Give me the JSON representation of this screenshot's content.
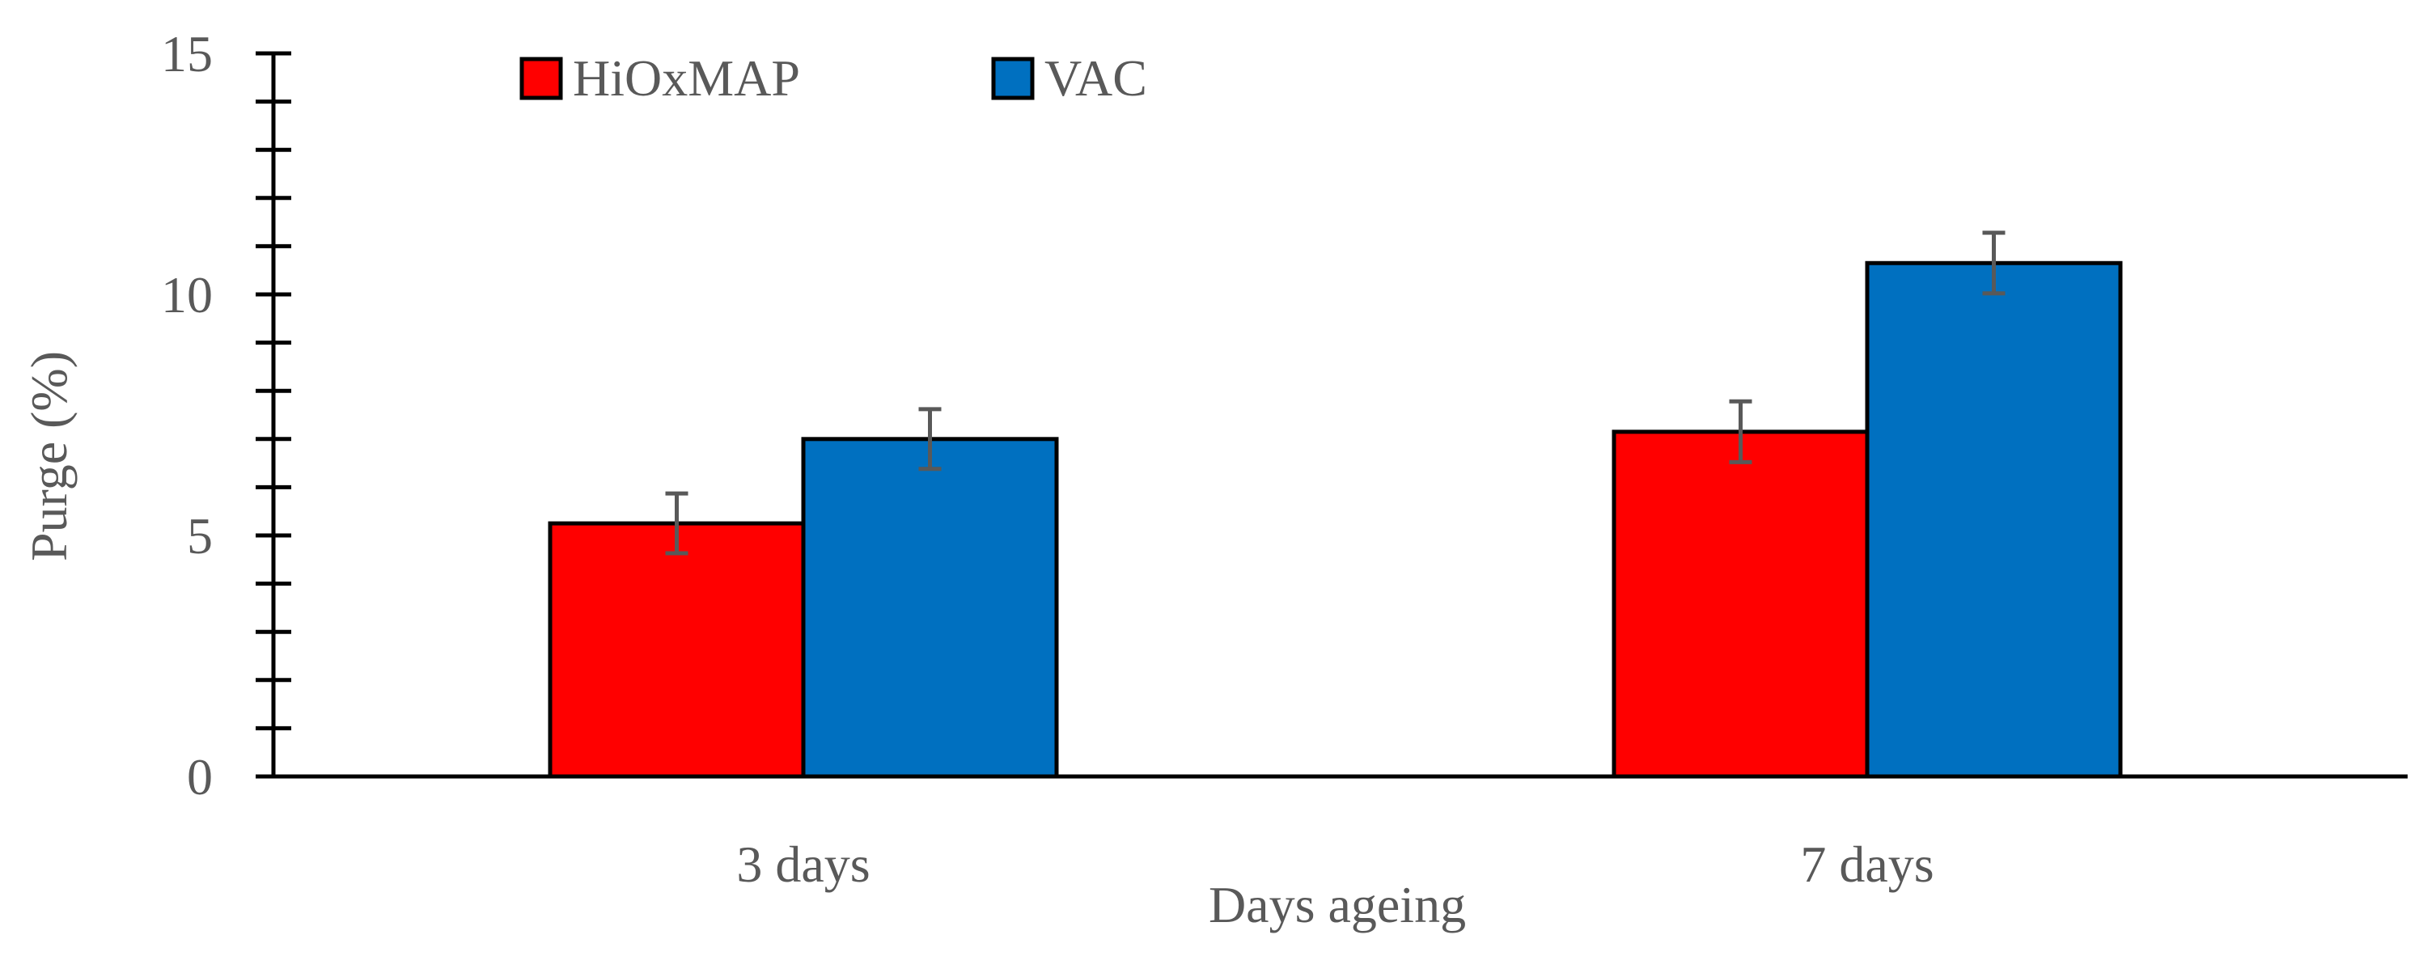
{
  "chart_data": {
    "type": "bar",
    "title": "",
    "xlabel": "Days ageing",
    "ylabel": "Purge (%)",
    "ylim": [
      0,
      15
    ],
    "yticks": [
      0,
      5,
      10,
      15
    ],
    "y_minor_step": 1,
    "categories": [
      "3 days",
      "7 days"
    ],
    "series": [
      {
        "name": "HiOxMAP",
        "color": "#ff0000",
        "values": [
          5.25,
          7.15
        ],
        "errors": [
          0.62,
          0.63
        ]
      },
      {
        "name": "VAC",
        "color": "#0070c0",
        "values": [
          7.0,
          10.65
        ],
        "errors": [
          0.62,
          0.63
        ]
      }
    ],
    "legend_position": "top",
    "grid": false,
    "colors": {
      "axis": "#000000",
      "text": "#595959",
      "error_bar": "#595959",
      "bar_outline": "#000000"
    }
  }
}
